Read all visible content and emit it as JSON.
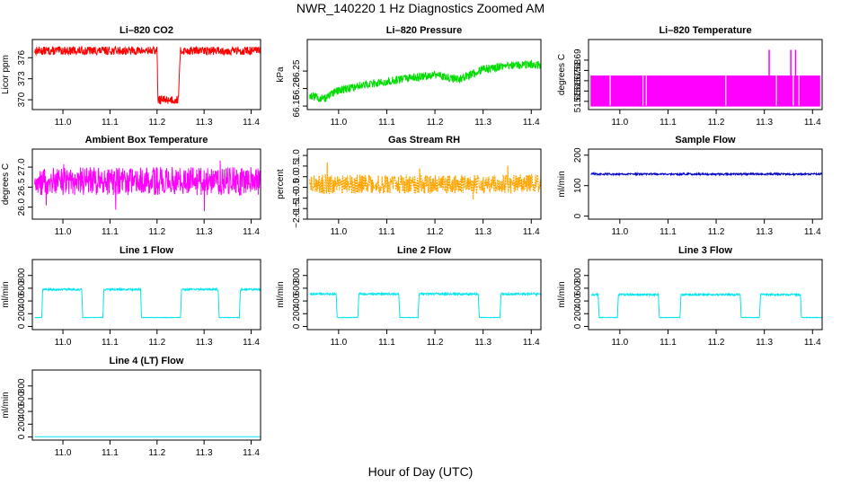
{
  "figure": {
    "title": "NWR_140220  1 Hz Diagnostics Zoomed AM",
    "xlabel": "Hour of Day (UTC)"
  },
  "chart_data": [
    {
      "id": "co2",
      "type": "line",
      "title": "Li–820 CO2",
      "ylabel": "Licor ppm",
      "color": "#ff0000",
      "xlim": [
        10.935,
        11.42
      ],
      "ylim": [
        368.6,
        378.6
      ],
      "xticks": [
        11.0,
        11.1,
        11.2,
        11.3,
        11.4
      ],
      "xtick_labels": [
        "11.0",
        "11.1",
        "11.2",
        "11.3",
        "11.4"
      ],
      "yticks": [
        370,
        373,
        376
      ],
      "ytick_labels": [
        "370",
        "373",
        "376"
      ],
      "series": [
        {
          "name": "CO2",
          "x": [
            10.94,
            11.2,
            11.202,
            11.245,
            11.25,
            11.42
          ],
          "y": [
            377.0,
            377.0,
            370.0,
            370.0,
            377.0,
            377.0
          ],
          "noise": 0.6
        }
      ]
    },
    {
      "id": "pressure",
      "type": "line",
      "title": "Li–820 Pressure",
      "ylabel": "kPa",
      "color": "#00dd00",
      "xlim": [
        10.935,
        11.42
      ],
      "ylim": [
        66.14,
        66.34
      ],
      "xticks": [
        11.0,
        11.1,
        11.2,
        11.3,
        11.4
      ],
      "xtick_labels": [
        "11.0",
        "11.1",
        "11.2",
        "11.3",
        "11.4"
      ],
      "yticks": [
        66.15,
        66.2,
        66.25
      ],
      "ytick_labels": [
        "66.15",
        "66.20",
        "66.25"
      ],
      "series": [
        {
          "name": "Pressure",
          "x": [
            10.94,
            10.97,
            11.0,
            11.05,
            11.1,
            11.15,
            11.2,
            11.25,
            11.3,
            11.35,
            11.4,
            11.42
          ],
          "y": [
            66.18,
            66.17,
            66.195,
            66.21,
            66.22,
            66.23,
            66.24,
            66.225,
            66.255,
            66.265,
            66.27,
            66.265
          ],
          "noise": 0.012
        }
      ]
    },
    {
      "id": "licor-temp",
      "type": "line",
      "title": "Li–820 Temperature",
      "ylabel": "degrees C",
      "color": "#ff00ff",
      "xlim": [
        10.935,
        11.42
      ],
      "ylim": [
        51.642,
        51.71
      ],
      "xticks": [
        11.0,
        11.1,
        11.2,
        11.3,
        11.4
      ],
      "xtick_labels": [
        "11.0",
        "11.1",
        "11.2",
        "11.3",
        "11.4"
      ],
      "yticks": [
        51.65,
        51.66,
        51.67,
        51.68,
        51.69
      ],
      "ytick_labels": [
        "51.65",
        "51.66",
        "51.67",
        "51.68",
        "51.69"
      ],
      "series": [
        {
          "name": "Temperature",
          "low": 51.645,
          "high": 51.675,
          "spikes_x": [
            11.31,
            11.355,
            11.365
          ],
          "spike_y": 51.7
        }
      ]
    },
    {
      "id": "ambient-temp",
      "type": "line",
      "title": "Ambient Box Temperature",
      "ylabel": "degrees C",
      "color": "#ff00ff",
      "xlim": [
        10.935,
        11.42
      ],
      "ylim": [
        25.7,
        27.45
      ],
      "xticks": [
        11.0,
        11.1,
        11.2,
        11.3,
        11.4
      ],
      "xtick_labels": [
        "11.0",
        "11.1",
        "11.2",
        "11.3",
        "11.4"
      ],
      "yticks": [
        26.0,
        26.5,
        27.0
      ],
      "ytick_labels": [
        "26.0",
        "26.5",
        "27.0"
      ],
      "series": [
        {
          "name": "Ambient",
          "x": [
            10.94,
            11.42
          ],
          "y": [
            26.65,
            26.65
          ],
          "noise": 0.35
        }
      ]
    },
    {
      "id": "rh",
      "type": "line",
      "title": "Gas Stream RH",
      "ylabel": "percent",
      "color": "#ffa500",
      "xlim": [
        10.935,
        11.42
      ],
      "ylim": [
        -2.0,
        1.3
      ],
      "xticks": [
        11.0,
        11.1,
        11.2,
        11.3,
        11.4
      ],
      "xtick_labels": [
        "11.0",
        "11.1",
        "11.2",
        "11.3",
        "11.4"
      ],
      "yticks": [
        -2.0,
        -1.5,
        -1.0,
        -0.5,
        0.0,
        0.5,
        1.0
      ],
      "ytick_labels": [
        "−2.0",
        "−1.5",
        "−1.0",
        "−0.5",
        "0.0",
        "0.5",
        "1.0"
      ],
      "series": [
        {
          "name": "RH",
          "x": [
            10.94,
            11.42
          ],
          "y": [
            -0.35,
            -0.35
          ],
          "noise": 0.45
        }
      ]
    },
    {
      "id": "sample-flow",
      "type": "line",
      "title": "Sample Flow",
      "ylabel": "ml/min",
      "color": "#0000cc",
      "xlim": [
        10.935,
        11.42
      ],
      "ylim": [
        -10,
        220
      ],
      "xticks": [
        11.0,
        11.1,
        11.2,
        11.3,
        11.4
      ],
      "xtick_labels": [
        "11.0",
        "11.1",
        "11.2",
        "11.3",
        "11.4"
      ],
      "yticks": [
        0,
        100,
        200
      ],
      "ytick_labels": [
        "0",
        "100",
        "200"
      ],
      "series": [
        {
          "name": "Sample",
          "x": [
            10.94,
            11.42
          ],
          "y": [
            138,
            138
          ],
          "noise": 3
        }
      ]
    },
    {
      "id": "line1-flow",
      "type": "line",
      "title": "Line 1 Flow",
      "ylabel": "ml/min",
      "color": "#00e5ee",
      "xlim": [
        10.935,
        11.42
      ],
      "ylim": [
        -50,
        1050
      ],
      "xticks": [
        11.0,
        11.1,
        11.2,
        11.3,
        11.4
      ],
      "xtick_labels": [
        "11.0",
        "11.1",
        "11.2",
        "11.3",
        "11.4"
      ],
      "yticks": [
        0,
        200,
        400,
        600,
        800
      ],
      "ytick_labels": [
        "0",
        "200",
        "400",
        "600",
        "800"
      ],
      "series": [
        {
          "name": "Line 1",
          "x": [
            10.94,
            10.955,
            10.957,
            11.04,
            11.042,
            11.085,
            11.087,
            11.165,
            11.167,
            11.25,
            11.252,
            11.33,
            11.332,
            11.375,
            11.377,
            11.42
          ],
          "y": [
            140,
            140,
            580,
            580,
            140,
            140,
            580,
            580,
            140,
            140,
            580,
            580,
            140,
            140,
            580,
            580
          ],
          "noise": 10
        }
      ]
    },
    {
      "id": "line2-flow",
      "type": "line",
      "title": "Line 2 Flow",
      "ylabel": "ml/min",
      "color": "#00e5ee",
      "xlim": [
        10.935,
        11.42
      ],
      "ylim": [
        -50,
        1050
      ],
      "xticks": [
        11.0,
        11.1,
        11.2,
        11.3,
        11.4
      ],
      "xtick_labels": [
        "11.0",
        "11.1",
        "11.2",
        "11.3",
        "11.4"
      ],
      "yticks": [
        0,
        200,
        400,
        600,
        800
      ],
      "ytick_labels": [
        "0",
        "200",
        "400",
        "600",
        "800"
      ],
      "series": [
        {
          "name": "Line 2",
          "x": [
            10.94,
            10.995,
            10.997,
            11.04,
            11.042,
            11.125,
            11.127,
            11.165,
            11.167,
            11.29,
            11.292,
            11.335,
            11.337,
            11.42
          ],
          "y": [
            510,
            510,
            140,
            140,
            510,
            510,
            140,
            140,
            510,
            510,
            140,
            140,
            510,
            510
          ],
          "noise": 10
        }
      ]
    },
    {
      "id": "line3-flow",
      "type": "line",
      "title": "Line 3 Flow",
      "ylabel": "ml/min",
      "color": "#00e5ee",
      "xlim": [
        10.935,
        11.42
      ],
      "ylim": [
        -50,
        1050
      ],
      "xticks": [
        11.0,
        11.1,
        11.2,
        11.3,
        11.4
      ],
      "xtick_labels": [
        "11.0",
        "11.1",
        "11.2",
        "11.3",
        "11.4"
      ],
      "yticks": [
        0,
        200,
        400,
        600,
        800
      ],
      "ytick_labels": [
        "0",
        "200",
        "400",
        "600",
        "800"
      ],
      "series": [
        {
          "name": "Line 3",
          "x": [
            10.94,
            10.955,
            10.957,
            10.995,
            10.997,
            11.08,
            11.082,
            11.125,
            11.127,
            11.25,
            11.252,
            11.29,
            11.292,
            11.375,
            11.377,
            11.42
          ],
          "y": [
            500,
            500,
            140,
            140,
            500,
            500,
            140,
            140,
            500,
            500,
            140,
            140,
            500,
            500,
            140,
            140
          ],
          "noise": 10
        }
      ]
    },
    {
      "id": "line4-flow",
      "type": "line",
      "title": "Line 4 (LT) Flow",
      "ylabel": "ml/min",
      "color": "#00e5ee",
      "xlim": [
        10.935,
        11.42
      ],
      "ylim": [
        -50,
        1050
      ],
      "xticks": [
        11.0,
        11.1,
        11.2,
        11.3,
        11.4
      ],
      "xtick_labels": [
        "11.0",
        "11.1",
        "11.2",
        "11.3",
        "11.4"
      ],
      "yticks": [
        0,
        200,
        400,
        600,
        800
      ],
      "ytick_labels": [
        "0",
        "200",
        "400",
        "600",
        "800"
      ],
      "series": [
        {
          "name": "Line 4",
          "x": [
            10.94,
            11.42
          ],
          "y": [
            2,
            2
          ],
          "noise": 1
        }
      ]
    }
  ]
}
